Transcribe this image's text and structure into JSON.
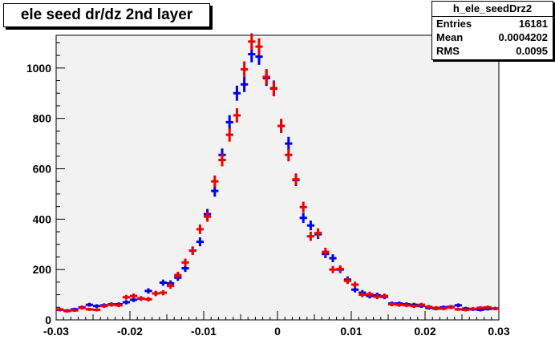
{
  "chart_data": {
    "type": "scatter",
    "title": "ele seed dr/dz 2nd layer",
    "xlim": [
      -0.03,
      0.03
    ],
    "ylim": [
      0,
      1130
    ],
    "x_ticks": [
      "-0.03",
      "-0.02",
      "-0.01",
      "0",
      "0.01",
      "0.02",
      "0.03"
    ],
    "x_tick_values": [
      -0.03,
      -0.02,
      -0.01,
      0,
      0.01,
      0.02,
      0.03
    ],
    "y_ticks": [
      "0",
      "200",
      "400",
      "600",
      "800",
      "1000"
    ],
    "y_tick_values": [
      0,
      200,
      400,
      600,
      800,
      1000
    ],
    "grid": false,
    "stats_box": {
      "name": "h_ele_seedDrz2",
      "rows": [
        {
          "label": "Entries",
          "value": "16181"
        },
        {
          "label": "Mean",
          "value": "0.0004202"
        },
        {
          "label": "RMS",
          "value": "0.0095"
        }
      ]
    },
    "bin_width": 0.001,
    "series": [
      {
        "color": "#0000ee",
        "x": [
          -0.0295,
          -0.0285,
          -0.0275,
          -0.0265,
          -0.0255,
          -0.0245,
          -0.0235,
          -0.0225,
          -0.0215,
          -0.0205,
          -0.0195,
          -0.0185,
          -0.0175,
          -0.0165,
          -0.0155,
          -0.0145,
          -0.0135,
          -0.0125,
          -0.0115,
          -0.0105,
          -0.0095,
          -0.0085,
          -0.0075,
          -0.0065,
          -0.0055,
          -0.0045,
          -0.0035,
          -0.0025,
          -0.0015,
          -0.0005,
          0.0005,
          0.0015,
          0.0025,
          0.0035,
          0.0045,
          0.0055,
          0.0065,
          0.0075,
          0.0085,
          0.0095,
          0.0105,
          0.0115,
          0.0125,
          0.0135,
          0.0145,
          0.0155,
          0.0165,
          0.0175,
          0.0185,
          0.0195,
          0.0205,
          0.0215,
          0.0225,
          0.0235,
          0.0245,
          0.0255,
          0.0265,
          0.0275,
          0.0285,
          0.0295
        ],
        "y": [
          40,
          37,
          42,
          50,
          60,
          55,
          58,
          62,
          62,
          70,
          80,
          85,
          115,
          105,
          148,
          145,
          168,
          205,
          275,
          310,
          420,
          512,
          655,
          785,
          900,
          935,
          1055,
          1045,
          960,
          920,
          770,
          700,
          555,
          405,
          375,
          340,
          262,
          245,
          200,
          160,
          120,
          108,
          95,
          98,
          92,
          65,
          65,
          62,
          60,
          55,
          48,
          45,
          50,
          52,
          58,
          45,
          42,
          40,
          44,
          45
        ]
      },
      {
        "color": "#ee0000",
        "x": [
          -0.0295,
          -0.0285,
          -0.0275,
          -0.0265,
          -0.0255,
          -0.0245,
          -0.0235,
          -0.0225,
          -0.0215,
          -0.0205,
          -0.0195,
          -0.0185,
          -0.0175,
          -0.0165,
          -0.0155,
          -0.0145,
          -0.0135,
          -0.0125,
          -0.0115,
          -0.0105,
          -0.0095,
          -0.0085,
          -0.0075,
          -0.0065,
          -0.0055,
          -0.0045,
          -0.0035,
          -0.0025,
          -0.0015,
          -0.0005,
          0.0005,
          0.0015,
          0.0025,
          0.0035,
          0.0045,
          0.0055,
          0.0065,
          0.0075,
          0.0085,
          0.0095,
          0.0105,
          0.0115,
          0.0125,
          0.0135,
          0.0145,
          0.0155,
          0.0165,
          0.0175,
          0.0185,
          0.0195,
          0.0205,
          0.0215,
          0.0225,
          0.0235,
          0.0245,
          0.0255,
          0.0265,
          0.0275,
          0.0285,
          0.0295
        ],
        "y": [
          42,
          35,
          38,
          48,
          42,
          40,
          55,
          60,
          58,
          90,
          95,
          85,
          82,
          105,
          108,
          135,
          178,
          228,
          275,
          360,
          410,
          550,
          635,
          735,
          812,
          995,
          1105,
          1085,
          965,
          918,
          770,
          655,
          558,
          448,
          332,
          345,
          270,
          200,
          202,
          155,
          140,
          100,
          102,
          92,
          95,
          62,
          60,
          58,
          55,
          60,
          52,
          48,
          45,
          50,
          42,
          40,
          44,
          48,
          50,
          45
        ]
      }
    ]
  }
}
